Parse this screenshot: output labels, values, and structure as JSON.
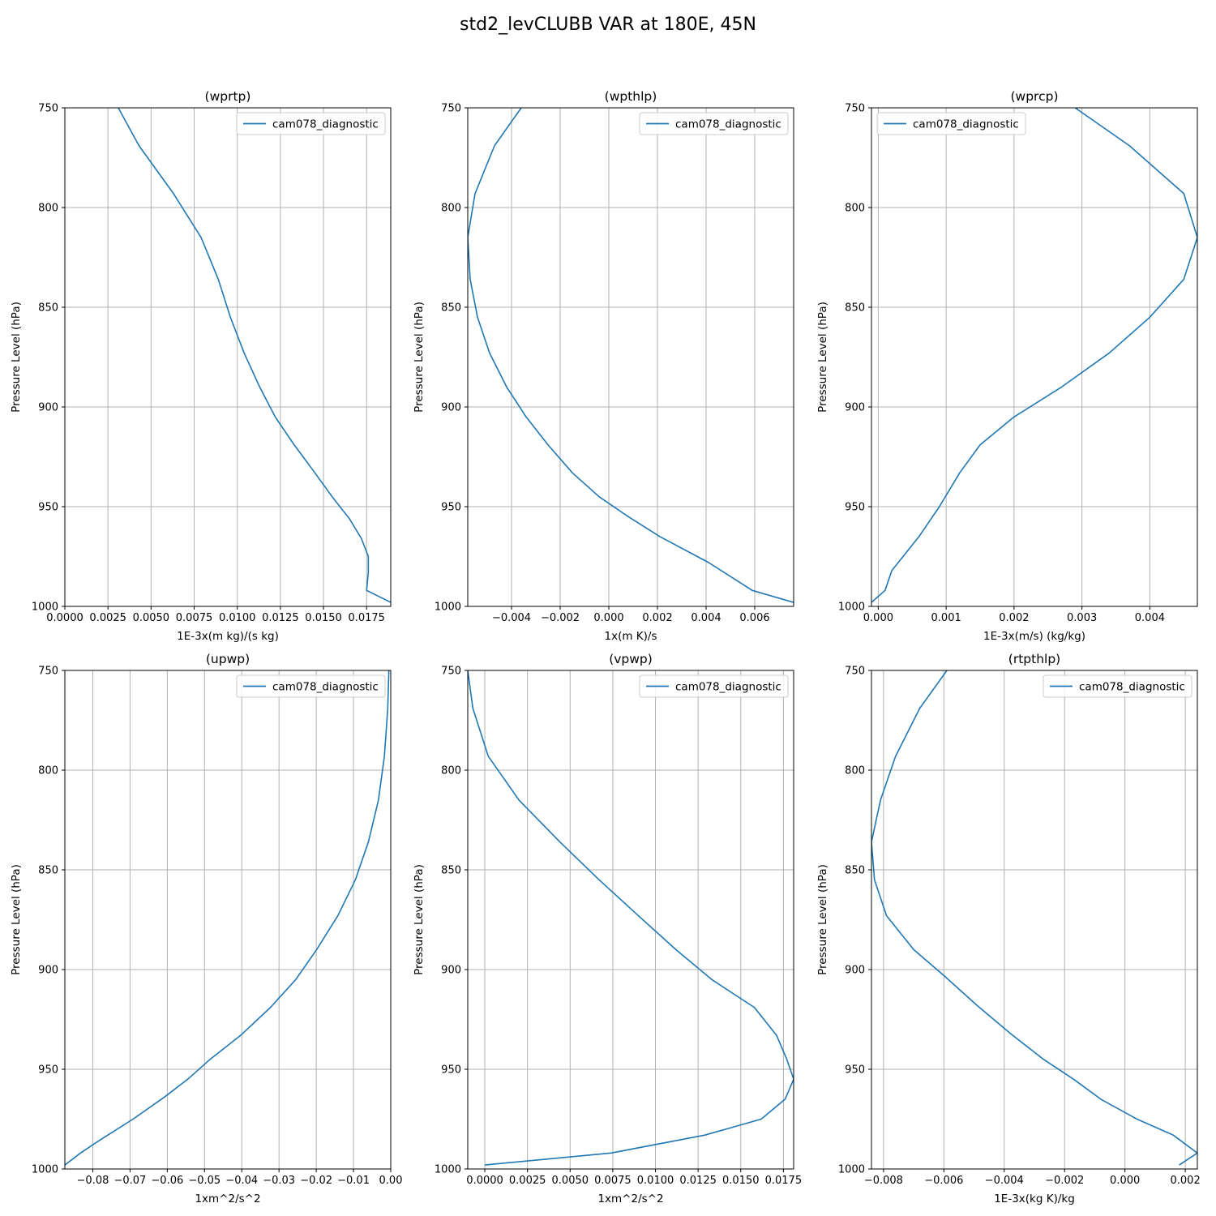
{
  "figure_title": "std2_levCLUBB VAR at 180E, 45N",
  "colors": {
    "series": "#1f77b4",
    "grid": "#b0b0b0",
    "axes": "#000000"
  },
  "chart_data": [
    {
      "type": "line",
      "title": "(wprtp)",
      "xlabel": "1E-3x(m kg)/(s kg)",
      "ylabel": "Pressure Level (hPa)",
      "xlim": [
        0.0,
        0.0189
      ],
      "ylim": [
        1000,
        750
      ],
      "xticks": [
        0.0,
        0.0025,
        0.005,
        0.0075,
        0.01,
        0.0125,
        0.015,
        0.0175
      ],
      "xtick_labels": [
        "0.0000",
        "0.0025",
        "0.0050",
        "0.0075",
        "0.0100",
        "0.0125",
        "0.0150",
        "0.0175"
      ],
      "yticks": [
        750,
        800,
        850,
        900,
        950,
        1000
      ],
      "ytick_labels": [
        "750",
        "800",
        "850",
        "900",
        "950",
        "1000"
      ],
      "grid": true,
      "legend_position": "top-right",
      "series": [
        {
          "name": "cam078_diagnostic",
          "x": [
            0.0031,
            0.0043,
            0.0063,
            0.0079,
            0.0089,
            0.0096,
            0.0104,
            0.0113,
            0.0122,
            0.0133,
            0.0145,
            0.0155,
            0.0165,
            0.0172,
            0.0176,
            0.0176,
            0.0175,
            0.0189
          ],
          "y": [
            750,
            769,
            793,
            815,
            836,
            855,
            873,
            890,
            905,
            919,
            933,
            945,
            956,
            966,
            975,
            983,
            992,
            998
          ]
        }
      ]
    },
    {
      "type": "line",
      "title": "(wpthlp)",
      "xlabel": "1x(m K)/s",
      "ylabel": "Pressure Level (hPa)",
      "xlim": [
        -0.0058,
        0.0076
      ],
      "ylim": [
        1000,
        750
      ],
      "xticks": [
        -0.004,
        -0.002,
        0.0,
        0.002,
        0.004,
        0.006
      ],
      "xtick_labels": [
        "−0.004",
        "−0.002",
        "0.000",
        "0.002",
        "0.004",
        "0.006"
      ],
      "yticks": [
        750,
        800,
        850,
        900,
        950,
        1000
      ],
      "ytick_labels": [
        "750",
        "800",
        "850",
        "900",
        "950",
        "1000"
      ],
      "grid": true,
      "legend_position": "top-right",
      "series": [
        {
          "name": "cam078_diagnostic",
          "x": [
            -0.0036,
            -0.0047,
            -0.0055,
            -0.0058,
            -0.0057,
            -0.0054,
            -0.0049,
            -0.0042,
            -0.0034,
            -0.0025,
            -0.0015,
            -0.0004,
            0.0008,
            0.0021,
            0.0041,
            0.0059,
            0.0076
          ],
          "y": [
            750,
            769,
            793,
            815,
            836,
            855,
            873,
            890,
            905,
            919,
            933,
            945,
            955,
            965,
            978,
            992,
            998
          ]
        }
      ]
    },
    {
      "type": "line",
      "title": "(wprcp)",
      "xlabel": "1E-3x(m/s) (kg/kg)",
      "ylabel": "Pressure Level (hPa)",
      "xlim": [
        -0.0001,
        0.0047
      ],
      "ylim": [
        1000,
        750
      ],
      "xticks": [
        0.0,
        0.001,
        0.002,
        0.003,
        0.004
      ],
      "xtick_labels": [
        "0.000",
        "0.001",
        "0.002",
        "0.003",
        "0.004"
      ],
      "yticks": [
        750,
        800,
        850,
        900,
        950,
        1000
      ],
      "ytick_labels": [
        "750",
        "800",
        "850",
        "900",
        "950",
        "1000"
      ],
      "grid": true,
      "legend_position": "top-left",
      "series": [
        {
          "name": "cam078_diagnostic",
          "x": [
            0.0029,
            0.0037,
            0.0045,
            0.0047,
            0.0045,
            0.004,
            0.0034,
            0.0027,
            0.002,
            0.0015,
            0.0012,
            0.0009,
            0.0006,
            0.0002,
            0.0001,
            -0.0001
          ],
          "y": [
            750,
            769,
            793,
            815,
            836,
            855,
            873,
            890,
            905,
            919,
            933,
            950,
            965,
            982,
            992,
            998
          ]
        }
      ]
    },
    {
      "type": "line",
      "title": "(upwp)",
      "xlabel": "1xm^2/s^2",
      "ylabel": "Pressure Level (hPa)",
      "xlim": [
        -0.0875,
        0.0
      ],
      "ylim": [
        1000,
        750
      ],
      "xticks": [
        -0.08,
        -0.07,
        -0.06,
        -0.05,
        -0.04,
        -0.03,
        -0.02,
        -0.01,
        0.0
      ],
      "xtick_labels": [
        "−0.08",
        "−0.07",
        "−0.06",
        "−0.05",
        "−0.04",
        "−0.03",
        "−0.02",
        "−0.01",
        "0.00"
      ],
      "yticks": [
        750,
        800,
        850,
        900,
        950,
        1000
      ],
      "ytick_labels": [
        "750",
        "800",
        "850",
        "900",
        "950",
        "1000"
      ],
      "grid": true,
      "legend_position": "top-right",
      "series": [
        {
          "name": "cam078_diagnostic",
          "x": [
            -0.0005,
            -0.0008,
            -0.0017,
            -0.0033,
            -0.006,
            -0.0095,
            -0.0142,
            -0.0199,
            -0.0255,
            -0.0323,
            -0.0403,
            -0.0485,
            -0.0545,
            -0.0608,
            -0.0692,
            -0.0785,
            -0.0833,
            -0.0875
          ],
          "y": [
            750,
            769,
            793,
            815,
            836,
            855,
            873,
            890,
            905,
            919,
            933,
            945,
            955,
            964,
            975,
            986,
            992,
            998
          ]
        }
      ]
    },
    {
      "type": "line",
      "title": "(vpwp)",
      "xlabel": "1xm^2/s^2",
      "ylabel": "Pressure Level (hPa)",
      "xlim": [
        -0.001,
        0.0181
      ],
      "ylim": [
        1000,
        750
      ],
      "xticks": [
        0.0,
        0.0025,
        0.005,
        0.0075,
        0.01,
        0.0125,
        0.015,
        0.0175
      ],
      "xtick_labels": [
        "0.0000",
        "0.0025",
        "0.0050",
        "0.0075",
        "0.0100",
        "0.0125",
        "0.0150",
        "0.0175"
      ],
      "yticks": [
        750,
        800,
        850,
        900,
        950,
        1000
      ],
      "ytick_labels": [
        "750",
        "800",
        "850",
        "900",
        "950",
        "1000"
      ],
      "grid": true,
      "legend_position": "top-right",
      "series": [
        {
          "name": "cam078_diagnostic",
          "x": [
            -0.001,
            -0.0007,
            0.0002,
            0.002,
            0.0044,
            0.0067,
            0.009,
            0.0112,
            0.0133,
            0.0158,
            0.0171,
            0.0177,
            0.0181,
            0.0176,
            0.0162,
            0.0129,
            0.0074,
            0.0
          ],
          "y": [
            750,
            769,
            793,
            815,
            836,
            855,
            873,
            890,
            905,
            919,
            933,
            945,
            955,
            965,
            975,
            983,
            992,
            998
          ]
        }
      ]
    },
    {
      "type": "line",
      "title": "(rtpthlp)",
      "xlabel": "1E-3x(kg K)/kg",
      "ylabel": "Pressure Level (hPa)",
      "xlim": [
        -0.0084,
        0.0024
      ],
      "ylim": [
        1000,
        750
      ],
      "xticks": [
        -0.008,
        -0.006,
        -0.004,
        -0.002,
        0.0,
        0.002
      ],
      "xtick_labels": [
        "−0.008",
        "−0.006",
        "−0.004",
        "−0.002",
        "0.000",
        "0.002"
      ],
      "yticks": [
        750,
        800,
        850,
        900,
        950,
        1000
      ],
      "ytick_labels": [
        "750",
        "800",
        "850",
        "900",
        "950",
        "1000"
      ],
      "grid": true,
      "legend_position": "top-right",
      "series": [
        {
          "name": "cam078_diagnostic",
          "x": [
            -0.0059,
            -0.0068,
            -0.0076,
            -0.0081,
            -0.0084,
            -0.0083,
            -0.0079,
            -0.007,
            -0.006,
            -0.0049,
            -0.0038,
            -0.0027,
            -0.0017,
            -0.0008,
            0.0004,
            0.0016,
            0.0024,
            0.0018
          ],
          "y": [
            750,
            769,
            793,
            815,
            836,
            855,
            873,
            890,
            903,
            918,
            932,
            945,
            955,
            965,
            975,
            983,
            992,
            998
          ]
        }
      ]
    }
  ]
}
